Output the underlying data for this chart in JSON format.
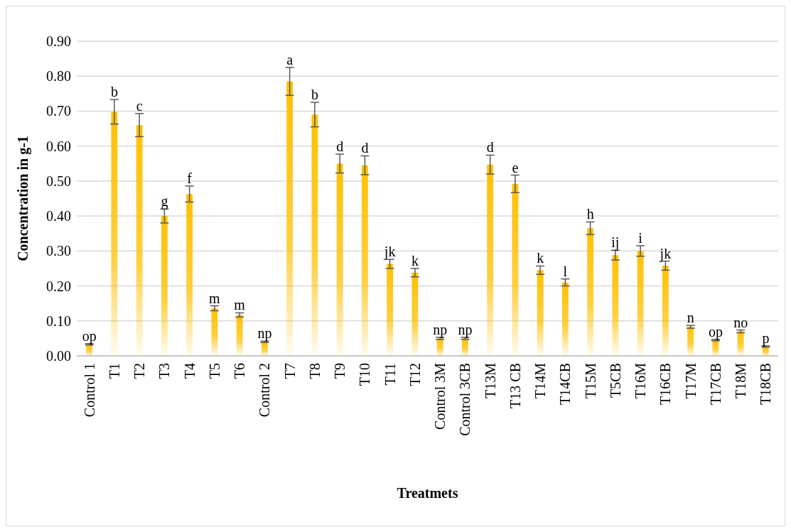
{
  "chart_data": {
    "type": "bar",
    "xlabel": "Treatmets",
    "ylabel": "Concentration in g-1",
    "categories": [
      "Control 1",
      "T1",
      "T2",
      "T3",
      "T4",
      "T5",
      "T6",
      "Control 2",
      "T7",
      "T8",
      "T9",
      "T10",
      "T11",
      "T12",
      "Control 3M",
      "Control 3CB",
      "T13M",
      "T13 CB",
      "T14M",
      "T14CB",
      "T15M",
      "T5CB",
      "T16M",
      "T16CB",
      "T17M",
      "T17CB",
      "T18M",
      "T18CB"
    ],
    "values": [
      0.033,
      0.698,
      0.66,
      0.4,
      0.463,
      0.136,
      0.117,
      0.04,
      0.785,
      0.69,
      0.55,
      0.545,
      0.263,
      0.238,
      0.05,
      0.05,
      0.547,
      0.492,
      0.245,
      0.21,
      0.365,
      0.288,
      0.3,
      0.258,
      0.083,
      0.045,
      0.07,
      0.027
    ],
    "errors": [
      0.002,
      0.035,
      0.033,
      0.02,
      0.023,
      0.007,
      0.006,
      0.002,
      0.04,
      0.035,
      0.027,
      0.027,
      0.013,
      0.012,
      0.003,
      0.003,
      0.027,
      0.025,
      0.012,
      0.01,
      0.018,
      0.014,
      0.015,
      0.013,
      0.004,
      0.002,
      0.004,
      0.002
    ],
    "value_labels": [
      "op",
      "b",
      "c",
      "g",
      "f",
      "m",
      "m",
      "np",
      "a",
      "b",
      "d",
      "d",
      "jk",
      "k",
      "np",
      "np",
      "d",
      "e",
      "k",
      "l",
      "h",
      "ij",
      "i",
      "jk",
      "n",
      "op",
      "no",
      "p"
    ],
    "color": "#ffc000",
    "ylim": [
      0,
      0.9
    ],
    "yticks": [
      {
        "value": 0,
        "label": "0.00"
      },
      {
        "value": 0.1,
        "label": "0.10"
      },
      {
        "value": 0.2,
        "label": "0.20"
      },
      {
        "value": 0.3,
        "label": "0.30"
      },
      {
        "value": 0.4,
        "label": "0.40"
      },
      {
        "value": 0.5,
        "label": "0.50"
      },
      {
        "value": 0.6,
        "label": "0.60"
      },
      {
        "value": 0.7,
        "label": "0.70"
      },
      {
        "value": 0.8,
        "label": "0.80"
      },
      {
        "value": 0.9,
        "label": "0.90"
      }
    ],
    "grid": "y"
  }
}
